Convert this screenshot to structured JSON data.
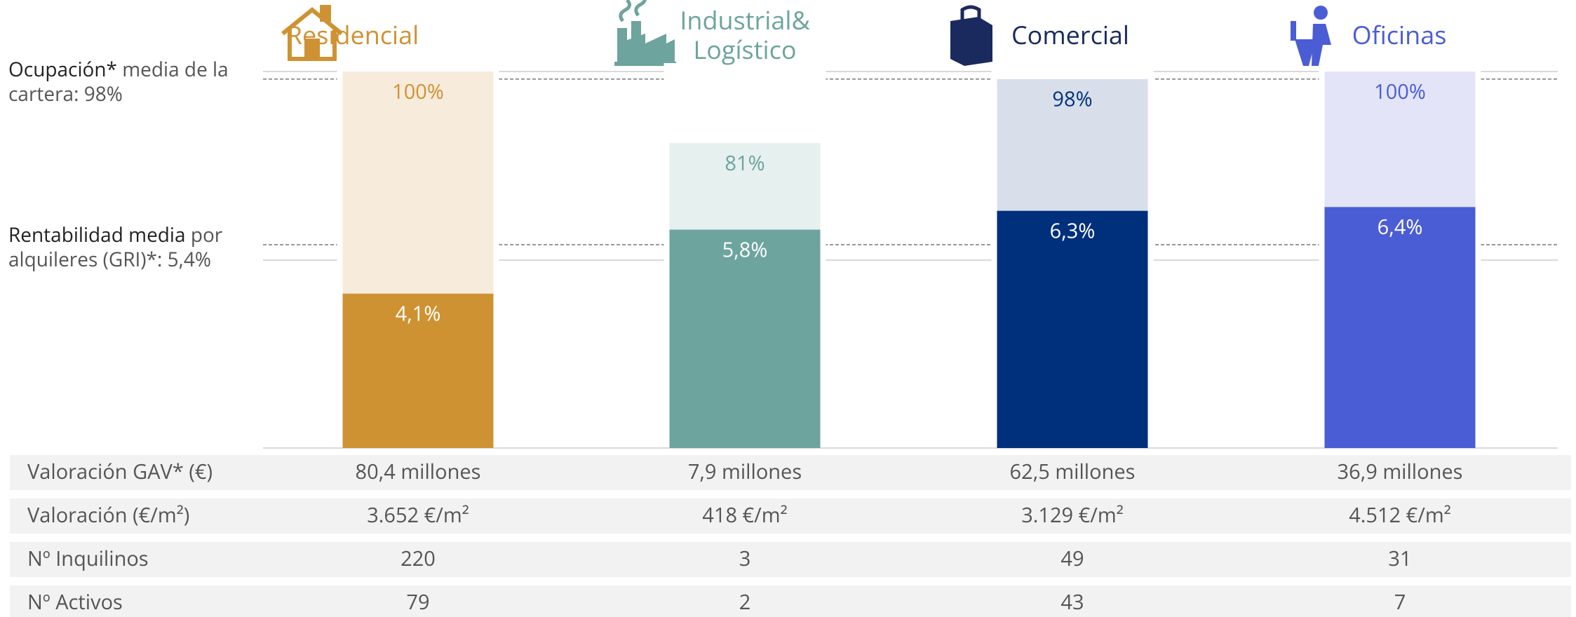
{
  "chart_data": {
    "type": "bar",
    "categories": [
      "Residencial",
      "Industrial&\nLogístico",
      "Comercial",
      "Oficinas"
    ],
    "category_colors": [
      "#cf9232",
      "#6da49e",
      "#1b2a5e",
      "#4a5dd4"
    ],
    "series": [
      {
        "name": "Ocupación",
        "colors": [
          "#f7ebdb",
          "#e6f0ee",
          "#d8dfeb",
          "#e3e4f7"
        ],
        "label_colors": [
          "#cf9232",
          "#6da49e",
          "#00307c",
          "#4a5dd4"
        ],
        "values": [
          100,
          81,
          98,
          100
        ],
        "value_labels": [
          "100%",
          "81%",
          "98%",
          "100%"
        ]
      },
      {
        "name": "Rentabilidad",
        "axis": "y2",
        "colors": [
          "#cf9232",
          "#6da49e",
          "#00307c",
          "#4a5dd4"
        ],
        "label_colors": [
          "#ffffff",
          "#ffffff",
          "#ffffff",
          "#ffffff"
        ],
        "values": [
          4.1,
          5.8,
          6.3,
          6.4
        ],
        "value_labels": [
          "4,1%",
          "5,8%",
          "6,3%",
          "6,4%"
        ]
      }
    ],
    "ylim": [
      0,
      100
    ],
    "y2lim": [
      0,
      10
    ],
    "annotations": [
      {
        "bold": "Ocupación*",
        "text": " media de la cartera: 98%",
        "value": 98,
        "axis": "y"
      },
      {
        "bold": "Rentabilidad media",
        "text": " por alquileres (GRI)*: 5,4%",
        "value": 5.4,
        "axis": "y2"
      }
    ],
    "table": {
      "rows": [
        {
          "label": "Valoración GAV* (€)",
          "values": [
            "80,4 millones",
            "7,9 millones",
            "62,5 millones",
            "36,9 millones"
          ]
        },
        {
          "label": "Valoración (€/m²)",
          "values": [
            "3.652 €/m²",
            "418 €/m²",
            "3.129 €/m²",
            "4.512 €/m²"
          ]
        },
        {
          "label": "Nº Inquilinos",
          "values": [
            "220",
            "3",
            "49",
            "31"
          ]
        },
        {
          "label": "Nº Activos",
          "values": [
            "79",
            "2",
            "43",
            "7"
          ]
        }
      ]
    }
  }
}
